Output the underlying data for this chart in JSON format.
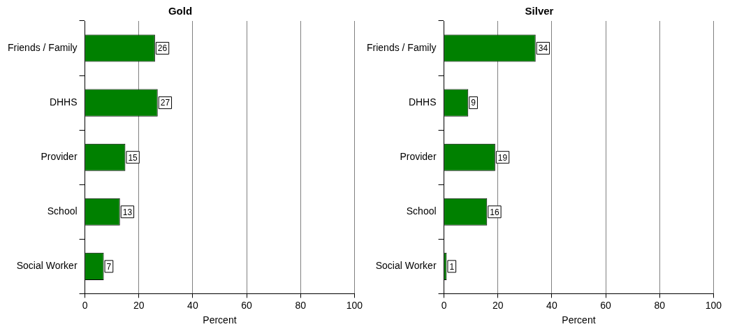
{
  "chart_data": [
    {
      "type": "bar",
      "orientation": "horizontal",
      "title": "Gold",
      "xlabel": "Percent",
      "categories": [
        "Friends / Family",
        "DHHS",
        "Provider",
        "School",
        "Social Worker"
      ],
      "values": [
        26,
        27,
        15,
        13,
        7
      ],
      "color": "#008000",
      "xlim": [
        0,
        100
      ],
      "xticks": [
        0,
        20,
        40,
        60,
        80,
        100
      ],
      "grid": "x",
      "data_labels": true
    },
    {
      "type": "bar",
      "orientation": "horizontal",
      "title": "Silver",
      "xlabel": "Percent",
      "categories": [
        "Friends / Family",
        "DHHS",
        "Provider",
        "School",
        "Social Worker"
      ],
      "values": [
        34,
        9,
        19,
        16,
        1
      ],
      "color": "#008000",
      "xlim": [
        0,
        100
      ],
      "xticks": [
        0,
        20,
        40,
        60,
        80,
        100
      ],
      "grid": "x",
      "data_labels": true
    }
  ]
}
